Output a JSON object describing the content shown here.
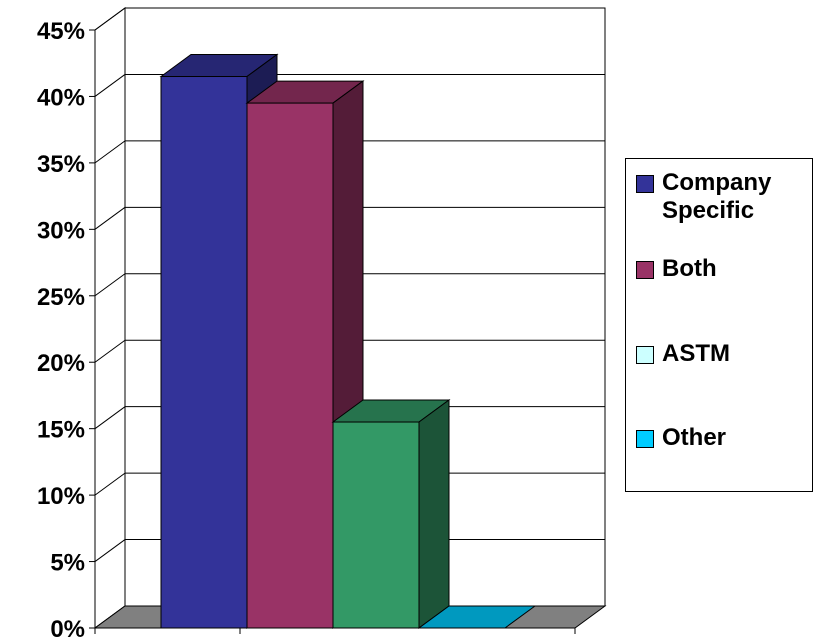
{
  "chart_data": {
    "type": "bar",
    "categories": [
      "Company Specific",
      "Both",
      "ASTM",
      "Other"
    ],
    "values": [
      41.5,
      39.5,
      15.5,
      0
    ],
    "ylim": [
      0,
      45
    ],
    "yticks": [
      "0%",
      "5%",
      "10%",
      "15%",
      "20%",
      "25%",
      "30%",
      "35%",
      "40%",
      "45%"
    ],
    "grid": true,
    "legend_position": "right",
    "legend": [
      {
        "label": "Company Specific",
        "color": "#333399"
      },
      {
        "label": "Both",
        "color": "#993366"
      },
      {
        "label": "ASTM",
        "color": "#CCFFFF"
      },
      {
        "label": "Other",
        "color": "#00CCFF"
      }
    ],
    "bar_colors": [
      "#333399",
      "#993366",
      "#339966",
      "#00CCFF"
    ]
  }
}
